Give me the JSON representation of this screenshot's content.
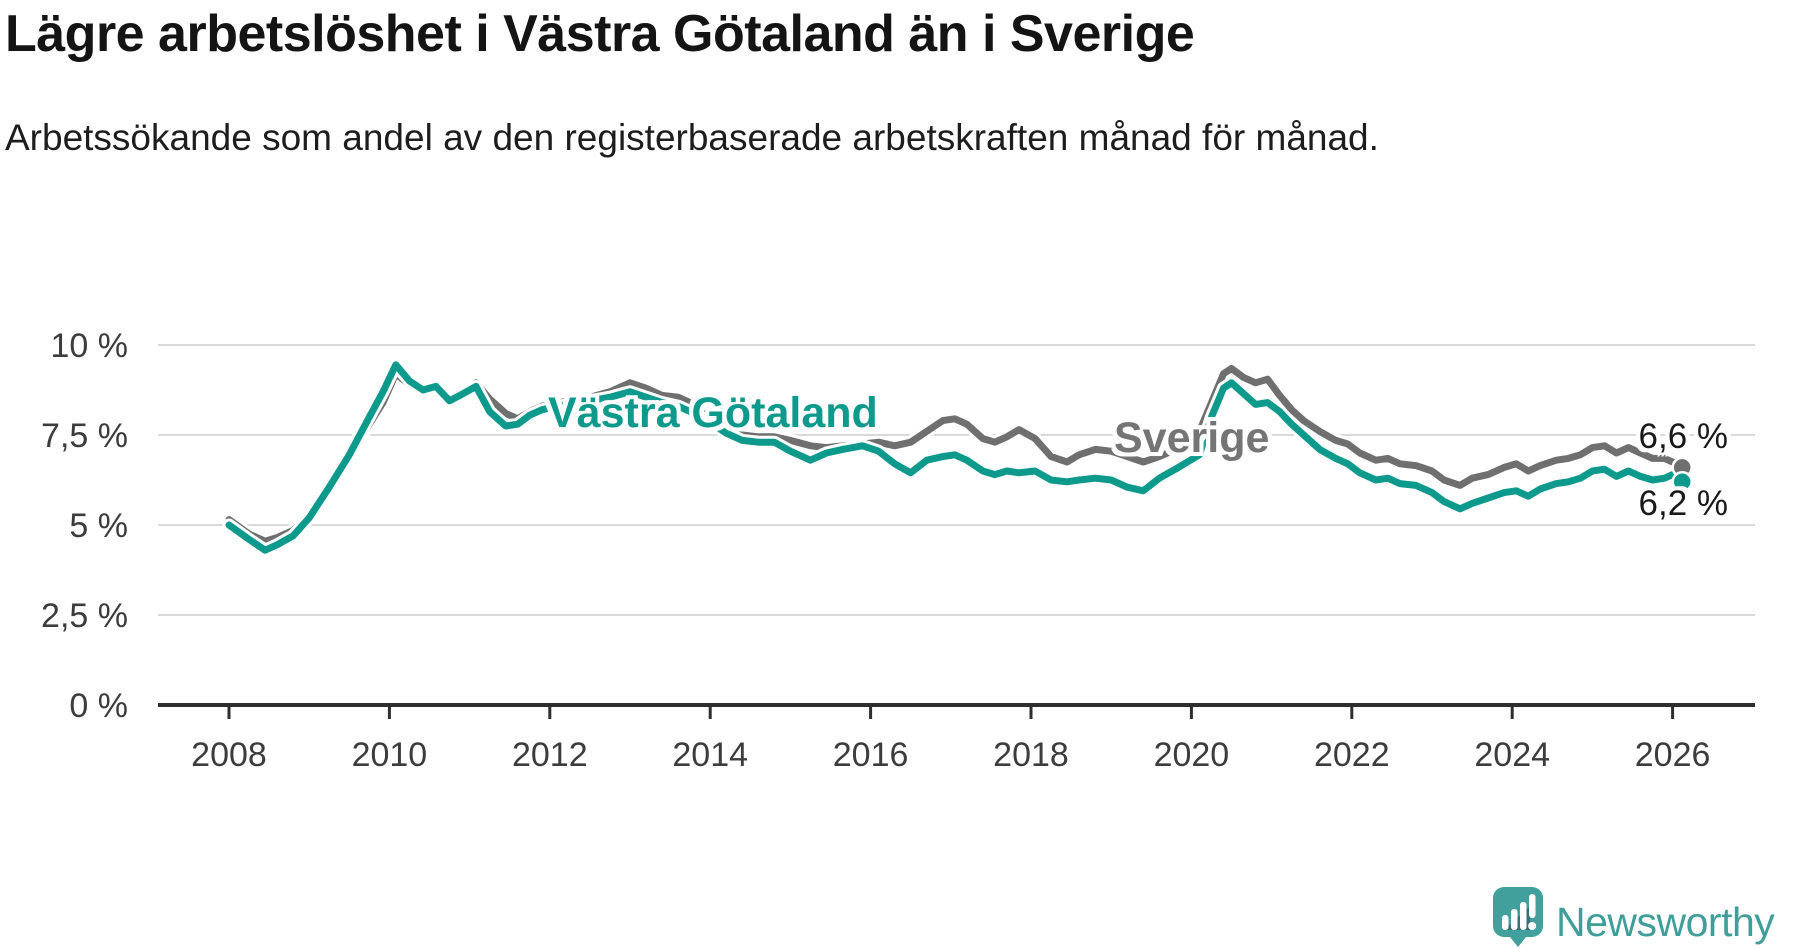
{
  "chart_data": {
    "type": "line",
    "title": "Lägre arbetslöshet i Västra Götaland än i Sverige",
    "subtitle": "Arbetssökande som andel av den registerbaserade arbetskraften månad för månad.",
    "legend": "inline-labels",
    "grid": "horizontal",
    "ylim": [
      0,
      10.5
    ],
    "xlim": [
      2007.1,
      2027.1
    ],
    "y_ticks": {
      "values": [
        10,
        7.5,
        5,
        2.5,
        0
      ],
      "labels": [
        "10 %",
        "7,5 %",
        "5 %",
        "2,5 %",
        "0 %"
      ]
    },
    "x_ticks": {
      "values": [
        2008,
        2010,
        2012,
        2014,
        2016,
        2018,
        2020,
        2022,
        2024,
        2026
      ],
      "labels": [
        "2008",
        "2010",
        "2012",
        "2014",
        "2016",
        "2018",
        "2020",
        "2022",
        "2024",
        "2026"
      ]
    },
    "x": [
      2008.0,
      2008.25,
      2008.45,
      2008.6,
      2008.8,
      2009.0,
      2009.25,
      2009.5,
      2009.75,
      2009.92,
      2010.08,
      2010.25,
      2010.42,
      2010.58,
      2010.75,
      2010.92,
      2011.08,
      2011.25,
      2011.45,
      2011.6,
      2011.75,
      2011.9,
      2012.1,
      2012.3,
      2012.5,
      2012.75,
      2013.0,
      2013.2,
      2013.4,
      2013.6,
      2013.8,
      2014.0,
      2014.2,
      2014.4,
      2014.6,
      2014.8,
      2015.0,
      2015.25,
      2015.45,
      2015.65,
      2015.9,
      2016.1,
      2016.3,
      2016.5,
      2016.7,
      2016.9,
      2017.05,
      2017.2,
      2017.4,
      2017.55,
      2017.7,
      2017.85,
      2018.05,
      2018.25,
      2018.45,
      2018.6,
      2018.8,
      2019.0,
      2019.2,
      2019.4,
      2019.6,
      2019.8,
      2019.95,
      2020.1,
      2020.25,
      2020.4,
      2020.5,
      2020.65,
      2020.8,
      2020.95,
      2021.1,
      2021.25,
      2021.4,
      2021.6,
      2021.8,
      2021.95,
      2022.1,
      2022.3,
      2022.45,
      2022.6,
      2022.8,
      2023.0,
      2023.15,
      2023.35,
      2023.5,
      2023.7,
      2023.9,
      2024.05,
      2024.2,
      2024.35,
      2024.55,
      2024.7,
      2024.85,
      2025.0,
      2025.15,
      2025.3,
      2025.45,
      2025.6,
      2025.75,
      2025.9,
      2026.0,
      2026.12
    ],
    "series": [
      {
        "name": "Sverige",
        "color": "#6f6f6f",
        "end_label": "6,6 %",
        "end_value": 6.6,
        "values": [
          5.15,
          4.75,
          4.55,
          4.65,
          4.85,
          5.25,
          6.05,
          6.9,
          7.8,
          8.4,
          9.2,
          8.9,
          8.7,
          8.8,
          8.55,
          8.7,
          8.95,
          8.5,
          8.1,
          7.95,
          8.15,
          8.3,
          8.4,
          8.45,
          8.55,
          8.7,
          8.95,
          8.8,
          8.6,
          8.55,
          8.35,
          8.05,
          7.75,
          7.5,
          7.45,
          7.45,
          7.35,
          7.2,
          7.15,
          7.2,
          7.25,
          7.3,
          7.2,
          7.3,
          7.6,
          7.9,
          7.95,
          7.8,
          7.4,
          7.3,
          7.45,
          7.65,
          7.4,
          6.9,
          6.75,
          6.95,
          7.1,
          7.05,
          6.9,
          6.75,
          6.9,
          7.1,
          7.3,
          7.6,
          8.4,
          9.2,
          9.35,
          9.1,
          8.95,
          9.05,
          8.6,
          8.2,
          7.9,
          7.6,
          7.35,
          7.25,
          7.0,
          6.8,
          6.85,
          6.7,
          6.65,
          6.5,
          6.25,
          6.1,
          6.3,
          6.4,
          6.6,
          6.7,
          6.5,
          6.65,
          6.8,
          6.85,
          6.95,
          7.15,
          7.2,
          7.0,
          7.15,
          7.0,
          6.85,
          6.85,
          6.75,
          6.6
        ]
      },
      {
        "name": "Västra Götaland",
        "color": "#0d9a8d",
        "end_label": "6,2 %",
        "end_value": 6.2,
        "values": [
          5.0,
          4.6,
          4.3,
          4.45,
          4.7,
          5.2,
          6.05,
          6.95,
          8.0,
          8.7,
          9.45,
          9.0,
          8.75,
          8.85,
          8.45,
          8.65,
          8.85,
          8.15,
          7.75,
          7.8,
          8.05,
          8.2,
          8.3,
          8.35,
          8.45,
          8.55,
          8.7,
          8.55,
          8.4,
          8.3,
          8.1,
          7.85,
          7.55,
          7.35,
          7.3,
          7.3,
          7.05,
          6.8,
          7.0,
          7.1,
          7.2,
          7.05,
          6.7,
          6.45,
          6.8,
          6.9,
          6.95,
          6.8,
          6.5,
          6.4,
          6.5,
          6.45,
          6.5,
          6.25,
          6.2,
          6.25,
          6.3,
          6.25,
          6.05,
          5.95,
          6.3,
          6.55,
          6.75,
          6.95,
          8.0,
          8.8,
          8.95,
          8.65,
          8.35,
          8.4,
          8.15,
          7.8,
          7.5,
          7.1,
          6.85,
          6.7,
          6.45,
          6.25,
          6.3,
          6.15,
          6.1,
          5.9,
          5.65,
          5.45,
          5.6,
          5.75,
          5.9,
          5.95,
          5.8,
          6.0,
          6.15,
          6.2,
          6.3,
          6.5,
          6.55,
          6.35,
          6.5,
          6.35,
          6.25,
          6.3,
          6.4,
          6.2
        ]
      }
    ],
    "colors": {
      "grid": "#d9d9d9",
      "axis": "#2e2e2e",
      "tick_text": "#3c3c3c",
      "end_label_text": "#191919"
    }
  },
  "branding": {
    "wordmark": "Newsworthy",
    "brand_teal": "#3f9e99"
  }
}
